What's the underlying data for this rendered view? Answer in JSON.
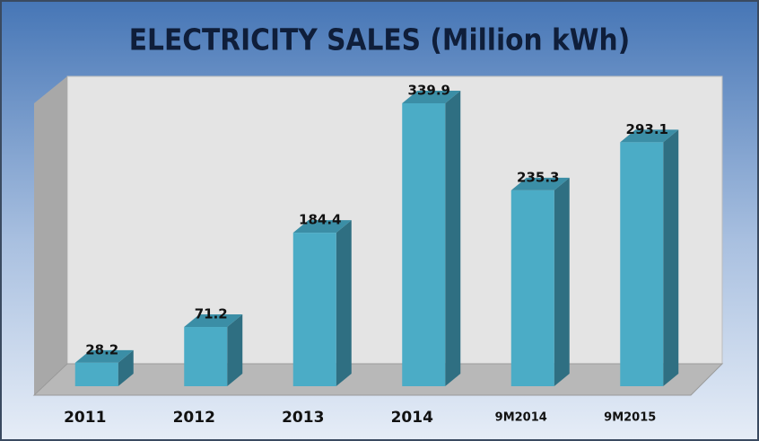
{
  "chart_data": {
    "type": "bar3d",
    "title": "ELECTRICITY  SALES (Million kWh)",
    "categories": [
      "2011",
      "2012",
      "2013",
      "2014",
      "9M2014",
      "9M2015"
    ],
    "values": [
      28.2,
      71.2,
      184.4,
      339.9,
      235.3,
      293.1
    ],
    "color": "#4bacc6"
  }
}
